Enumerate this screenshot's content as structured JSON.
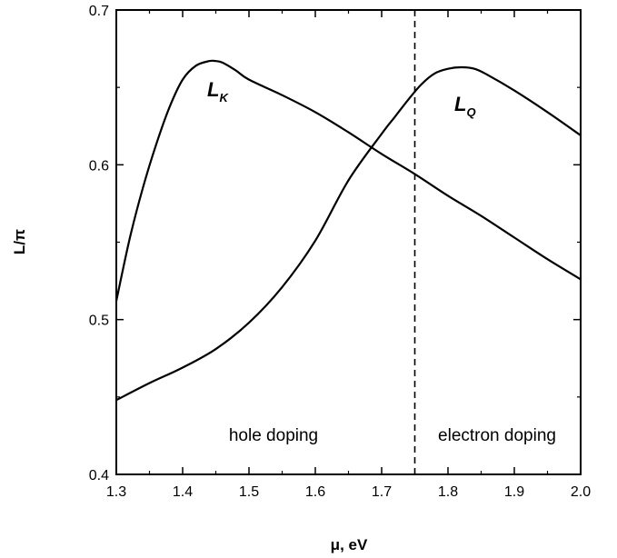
{
  "chart_data": {
    "type": "line",
    "xlabel": "μ, eV",
    "ylabel": "L/π",
    "xlim": [
      1.3,
      2.0
    ],
    "ylim": [
      0.4,
      0.7
    ],
    "x_ticks": [
      "1.3",
      "1.4",
      "1.5",
      "1.6",
      "1.7",
      "1.8",
      "1.9",
      "2.0"
    ],
    "y_ticks": [
      "0.4",
      "0.5",
      "0.6",
      "0.7"
    ],
    "grid": false,
    "series": [
      {
        "name": "L_K",
        "label_main": "L",
        "label_sub": "K",
        "x": [
          1.3,
          1.32,
          1.34,
          1.36,
          1.38,
          1.4,
          1.42,
          1.44,
          1.45,
          1.46,
          1.48,
          1.5,
          1.55,
          1.6,
          1.65,
          1.7,
          1.75,
          1.8,
          1.85,
          1.9,
          1.95,
          2.0
        ],
        "y": [
          0.512,
          0.552,
          0.585,
          0.613,
          0.637,
          0.655,
          0.664,
          0.667,
          0.667,
          0.666,
          0.661,
          0.655,
          0.645,
          0.634,
          0.621,
          0.607,
          0.594,
          0.58,
          0.567,
          0.553,
          0.539,
          0.526
        ]
      },
      {
        "name": "L_Q",
        "label_main": "L",
        "label_sub": "Q",
        "x": [
          1.3,
          1.35,
          1.4,
          1.45,
          1.5,
          1.55,
          1.6,
          1.65,
          1.7,
          1.72,
          1.74,
          1.76,
          1.78,
          1.8,
          1.82,
          1.84,
          1.86,
          1.9,
          1.95,
          2.0
        ],
        "y": [
          0.448,
          0.459,
          0.469,
          0.481,
          0.498,
          0.521,
          0.551,
          0.59,
          0.62,
          0.631,
          0.642,
          0.652,
          0.659,
          0.662,
          0.663,
          0.662,
          0.658,
          0.648,
          0.634,
          0.619
        ]
      }
    ],
    "divider": {
      "x": 1.75,
      "style": "dashed"
    },
    "annotations": {
      "left_region": "hole doping",
      "right_region": "electron doping"
    }
  }
}
